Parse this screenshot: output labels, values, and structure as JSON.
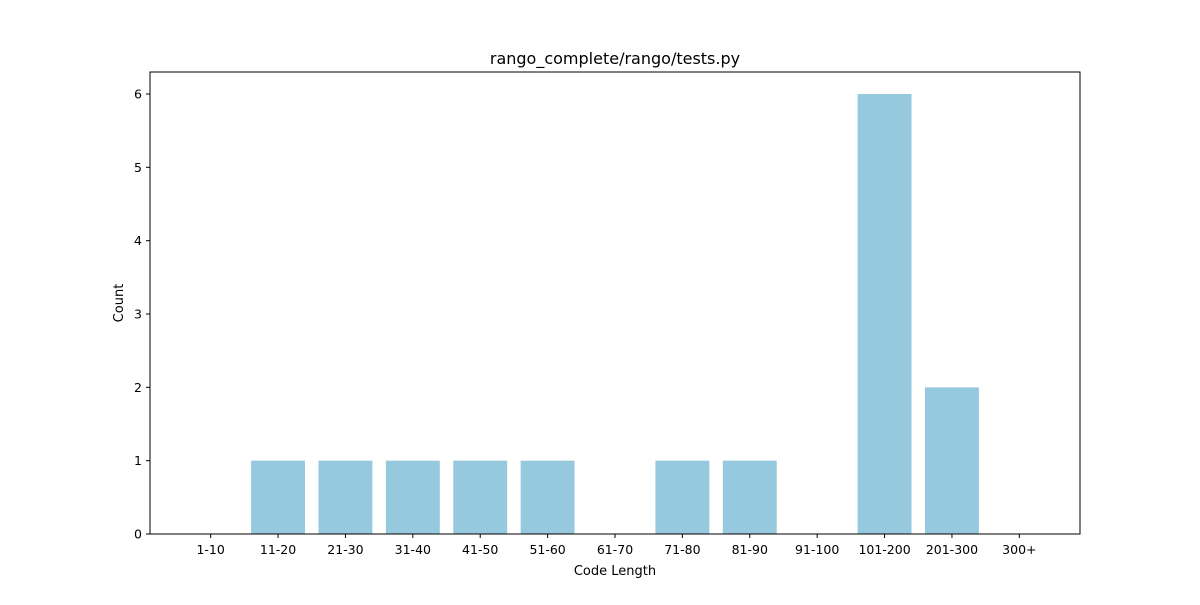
{
  "chart_data": {
    "type": "bar",
    "title": "rango_complete/rango/tests.py",
    "xlabel": "Code Length",
    "ylabel": "Count",
    "categories": [
      "1-10",
      "11-20",
      "21-30",
      "31-40",
      "41-50",
      "51-60",
      "61-70",
      "71-80",
      "81-90",
      "91-100",
      "101-200",
      "201-300",
      "300+"
    ],
    "values": [
      0,
      1,
      1,
      1,
      1,
      1,
      0,
      1,
      1,
      0,
      6,
      2,
      0
    ],
    "ylim": [
      0,
      6.3
    ],
    "yticks": [
      0,
      1,
      2,
      3,
      4,
      5,
      6
    ],
    "bar_color": "#96c9dd",
    "grid": false,
    "legend": false
  }
}
